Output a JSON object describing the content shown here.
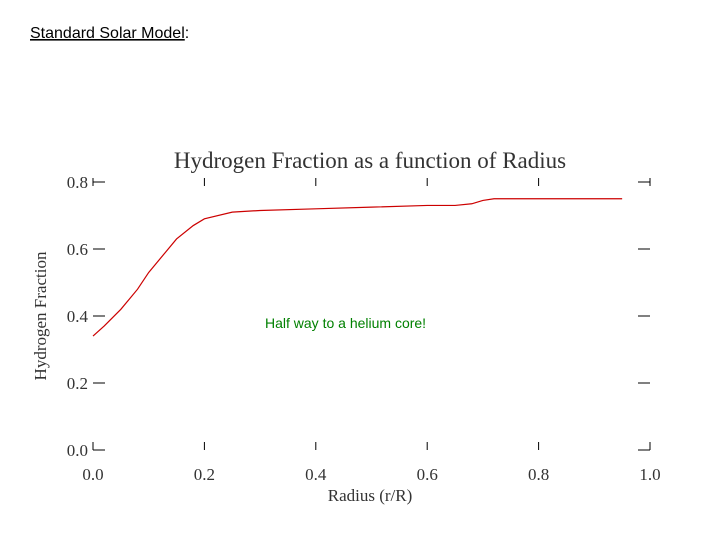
{
  "slide": {
    "title": "Standard Solar Model",
    "title_suffix": ":"
  },
  "chart_data": {
    "type": "line",
    "title": "Hydrogen Fraction as a function of Radius",
    "x_label": "Radius (r/R)",
    "y_label": "Hydrogen Fraction",
    "annotation": "Half way to a helium core!",
    "x": [
      0.0,
      0.02,
      0.05,
      0.08,
      0.1,
      0.13,
      0.15,
      0.18,
      0.2,
      0.25,
      0.3,
      0.4,
      0.5,
      0.6,
      0.65,
      0.68,
      0.7,
      0.72,
      0.8,
      0.9,
      0.95
    ],
    "series": [
      {
        "name": "Hydrogen Fraction",
        "color": "#cc0000",
        "values": [
          0.34,
          0.37,
          0.42,
          0.48,
          0.53,
          0.59,
          0.63,
          0.67,
          0.69,
          0.71,
          0.715,
          0.72,
          0.725,
          0.73,
          0.73,
          0.735,
          0.745,
          0.75,
          0.75,
          0.75,
          0.75
        ]
      }
    ],
    "xlim": [
      0.0,
      1.0
    ],
    "ylim": [
      0.0,
      0.8
    ],
    "xticks": [
      {
        "value": 0.0,
        "label": "0.0"
      },
      0.2,
      0.4,
      0.6,
      0.8,
      {
        "value": 1.0,
        "label": "1.0"
      }
    ],
    "yticks": [
      {
        "value": 0.0,
        "label": "0.0"
      },
      0.2,
      0.4,
      0.6,
      0.8
    ]
  }
}
